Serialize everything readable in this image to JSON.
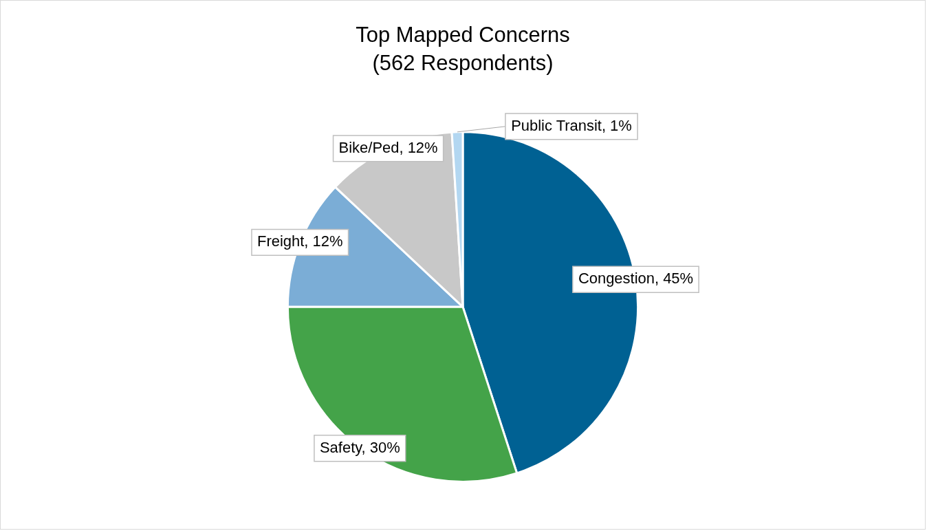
{
  "chart_data": {
    "type": "pie",
    "title": "Top Mapped Concerns",
    "subtitle": "(562 Respondents)",
    "categories": [
      "Congestion",
      "Safety",
      "Freight",
      "Bike/Ped",
      "Public Transit"
    ],
    "values": [
      45,
      30,
      12,
      12,
      1
    ],
    "colors": [
      "#006193",
      "#44a349",
      "#7badd6",
      "#c8c8c8",
      "#b3d7f1"
    ],
    "value_labels": [
      "45%",
      "30%",
      "12%",
      "12%",
      "1%"
    ],
    "legend": false
  }
}
